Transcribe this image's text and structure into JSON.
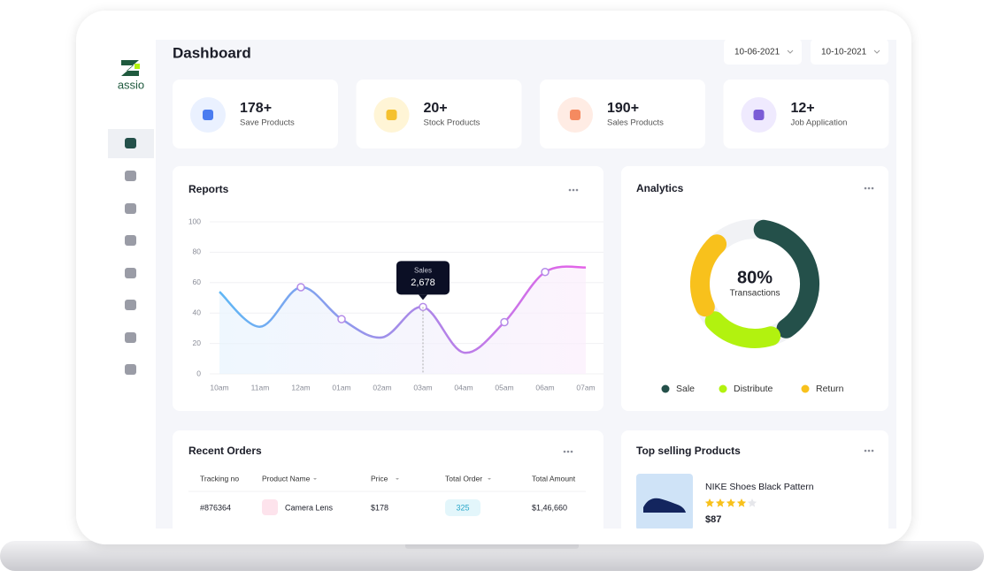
{
  "sidebar": {
    "logo": "assio"
  },
  "header": {
    "title": "Dashboard",
    "date_from": "10-06-2021",
    "date_to": "10-10-2021"
  },
  "stats": [
    {
      "value": "178+",
      "label": "Save Products"
    },
    {
      "value": "20+",
      "label": "Stock Products"
    },
    {
      "value": "190+",
      "label": "Sales Products"
    },
    {
      "value": "12+",
      "label": "Job Application"
    }
  ],
  "reports": {
    "title": "Reports",
    "type": "line",
    "categories": [
      "10am",
      "11am",
      "12am",
      "01am",
      "02am",
      "03am",
      "04am",
      "05am",
      "06am",
      "07am"
    ],
    "values": [
      54,
      31,
      57,
      36,
      24,
      44,
      14,
      34,
      67,
      70
    ],
    "ylim": [
      0,
      100
    ],
    "yticks": [
      0,
      20,
      40,
      60,
      80,
      100
    ],
    "tooltip": {
      "label": "Sales",
      "value": "2,678"
    }
  },
  "analytics": {
    "title": "Analytics",
    "type": "donut",
    "center_value": "80%",
    "center_label": "Transactions",
    "series": [
      {
        "name": "Sale",
        "color": "#24504a",
        "value": 40
      },
      {
        "name": "Distribute",
        "color": "#b2f20f",
        "value": 20
      },
      {
        "name": "Return",
        "color": "#f8c11c",
        "value": 22
      }
    ]
  },
  "recent_orders": {
    "title": "Recent Orders",
    "columns": [
      "Tracking no",
      "Product Name",
      "Price",
      "Total Order",
      "Total Amount"
    ],
    "rows": [
      [
        "#876364",
        "Camera Lens",
        "$178",
        "325",
        "$1,46,660"
      ]
    ]
  },
  "top_selling": {
    "title": "Top selling Products",
    "products": [
      {
        "name": "NIKE Shoes Black Pattern",
        "rating": 4,
        "price": "$87"
      }
    ]
  }
}
